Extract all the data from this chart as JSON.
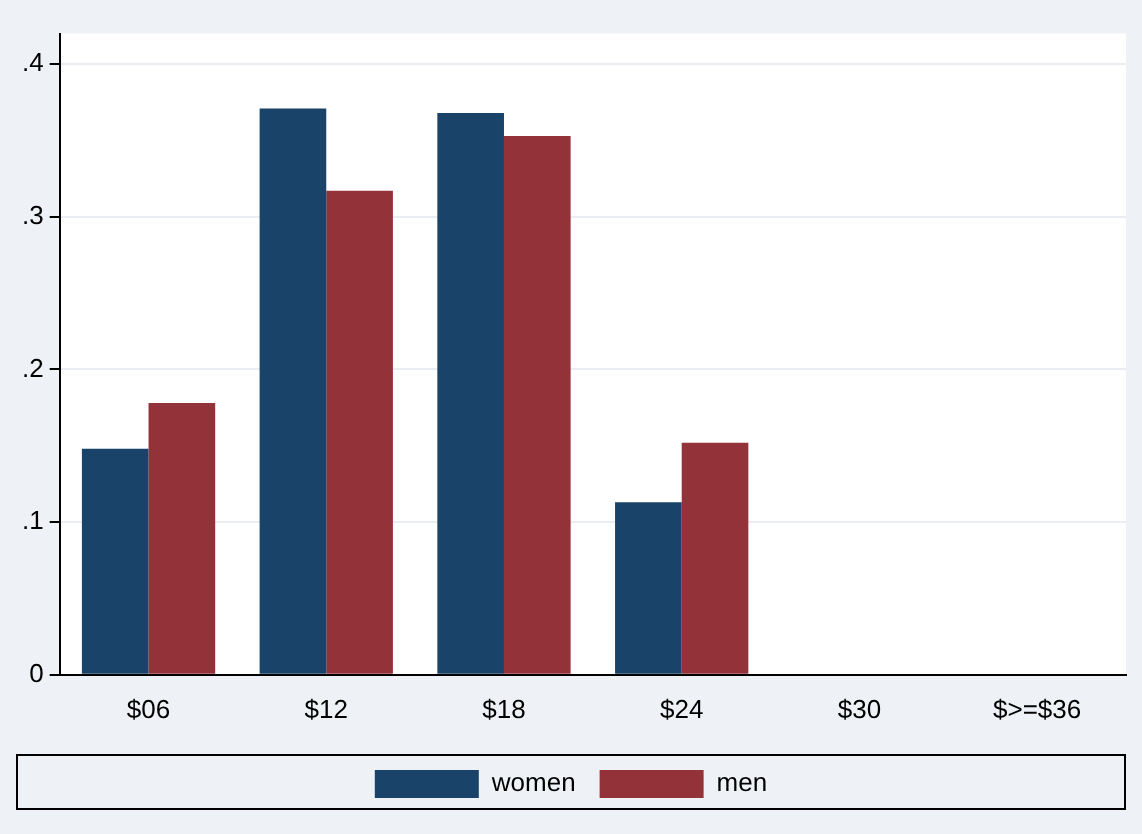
{
  "chart_data": {
    "type": "bar",
    "categories": [
      "$06",
      "$12",
      "$18",
      "$24",
      "$30",
      "$>=$36"
    ],
    "series": [
      {
        "name": "women",
        "color": "#1a4369",
        "values": [
          0.148,
          0.371,
          0.368,
          0.113,
          0,
          0
        ]
      },
      {
        "name": "men",
        "color": "#943239",
        "values": [
          0.178,
          0.317,
          0.353,
          0.152,
          0,
          0
        ]
      }
    ],
    "ylim": [
      0,
      0.42
    ],
    "yticks": [
      0,
      {
        "value": 0.1,
        "label": ".1"
      },
      {
        "value": 0.2,
        "label": ".2"
      },
      {
        "value": 0.3,
        "label": ".3"
      },
      {
        "value": 0.4,
        "label": ".4"
      }
    ],
    "grid": "y",
    "legend": "bottom"
  }
}
